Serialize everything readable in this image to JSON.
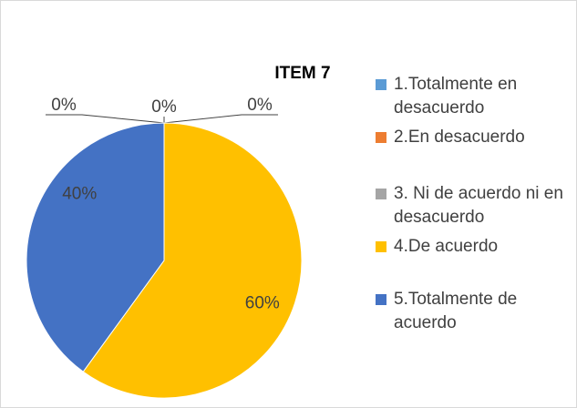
{
  "chart_data": {
    "type": "pie",
    "title": "ITEM 7",
    "categories": [
      "1.Totalmente en desacuerdo",
      "2.En desacuerdo",
      "3. Ni de acuerdo ni en desacuerdo",
      "4.De acuerdo",
      "5.Totalmente de acuerdo"
    ],
    "values": [
      0,
      0,
      0,
      60,
      40
    ],
    "value_labels": [
      "0%",
      "0%",
      "0%",
      "60%",
      "40%"
    ],
    "colors": [
      "#5b9bd5",
      "#ed7d31",
      "#a5a5a5",
      "#ffc000",
      "#4472c4"
    ],
    "legend": "right"
  }
}
